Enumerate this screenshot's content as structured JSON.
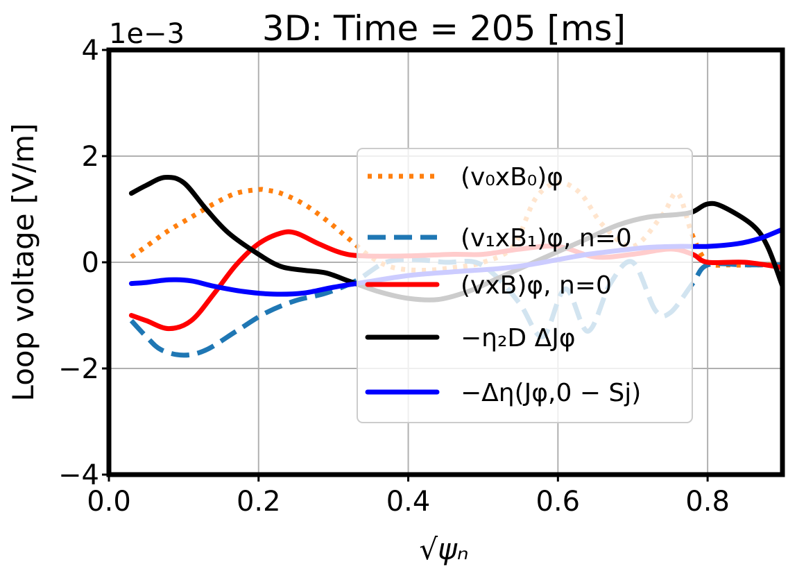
{
  "chart_data": {
    "type": "line",
    "title": "3D: Time = 205 [ms]",
    "xlabel": "√ψₙ",
    "ylabel": "Loop voltage [V/m]",
    "y_scale_label": "1e−3",
    "xlim": [
      0.0,
      0.9
    ],
    "ylim": [
      -4,
      4
    ],
    "xticks": [
      0.0,
      0.2,
      0.4,
      0.6,
      0.8
    ],
    "xtick_labels": [
      "0.0",
      "0.2",
      "0.4",
      "0.6",
      "0.8"
    ],
    "yticks": [
      -4,
      -2,
      0,
      2,
      4
    ],
    "ytick_labels": [
      "−4",
      "−2",
      "0",
      "2",
      "4"
    ],
    "grid": true,
    "legend_position": "center-right",
    "series": [
      {
        "name": "(v₀xB₀)φ",
        "color": "#ff7f0e",
        "style": "dotted",
        "x": [
          0.03,
          0.05,
          0.08,
          0.11,
          0.14,
          0.17,
          0.2,
          0.21,
          0.23,
          0.26,
          0.29,
          0.32,
          0.35,
          0.38,
          0.42,
          0.46,
          0.5,
          0.54,
          0.57,
          0.6,
          0.63,
          0.66,
          0.7,
          0.74,
          0.76,
          0.78,
          0.8,
          0.83,
          0.87,
          0.9
        ],
        "values": [
          0.1,
          0.3,
          0.6,
          0.85,
          1.1,
          1.3,
          1.37,
          1.36,
          1.3,
          1.1,
          0.8,
          0.45,
          0.1,
          -0.1,
          -0.15,
          -0.1,
          0.0,
          0.3,
          1.2,
          1.5,
          1.3,
          0.7,
          0.3,
          0.9,
          1.3,
          0.5,
          0.0,
          -0.05,
          -0.05,
          -0.05
        ]
      },
      {
        "name": "(v₁xB₁)φ, n=0",
        "color": "#1f77b4",
        "style": "dashed",
        "x": [
          0.03,
          0.05,
          0.07,
          0.1,
          0.13,
          0.17,
          0.21,
          0.25,
          0.29,
          0.33,
          0.37,
          0.41,
          0.45,
          0.49,
          0.52,
          0.55,
          0.58,
          0.61,
          0.64,
          0.67,
          0.7,
          0.73,
          0.75,
          0.78,
          0.8,
          0.85,
          0.9
        ],
        "values": [
          -1.1,
          -1.4,
          -1.65,
          -1.75,
          -1.65,
          -1.3,
          -0.95,
          -0.72,
          -0.58,
          -0.35,
          0.0,
          0.05,
          0.0,
          0.0,
          -0.3,
          -0.8,
          -1.4,
          -0.5,
          -1.3,
          -0.4,
          0.0,
          -0.9,
          -0.95,
          -0.4,
          -0.05,
          -0.05,
          -0.05
        ]
      },
      {
        "name": "(vxB)φ, n=0",
        "color": "#ff0000",
        "style": "solid",
        "x": [
          0.03,
          0.05,
          0.08,
          0.11,
          0.14,
          0.17,
          0.2,
          0.23,
          0.25,
          0.28,
          0.31,
          0.34,
          0.4,
          0.46,
          0.5,
          0.55,
          0.6,
          0.65,
          0.7,
          0.75,
          0.78,
          0.8,
          0.85,
          0.9
        ],
        "values": [
          -1.0,
          -1.1,
          -1.25,
          -1.1,
          -0.6,
          -0.05,
          0.35,
          0.55,
          0.55,
          0.35,
          0.18,
          0.12,
          0.12,
          0.15,
          0.15,
          0.25,
          0.3,
          0.1,
          0.15,
          0.25,
          0.15,
          0.0,
          0.0,
          -0.1
        ]
      },
      {
        "name": "−η₂D ΔJφ",
        "color": "#000000",
        "style": "solid",
        "x": [
          0.03,
          0.05,
          0.075,
          0.1,
          0.13,
          0.16,
          0.2,
          0.23,
          0.26,
          0.29,
          0.32,
          0.36,
          0.4,
          0.44,
          0.48,
          0.52,
          0.56,
          0.6,
          0.64,
          0.68,
          0.72,
          0.76,
          0.78,
          0.8,
          0.82,
          0.86,
          0.88,
          0.9
        ],
        "values": [
          1.3,
          1.45,
          1.6,
          1.5,
          1.0,
          0.55,
          0.15,
          -0.08,
          -0.15,
          -0.2,
          -0.35,
          -0.55,
          -0.68,
          -0.7,
          -0.55,
          -0.3,
          -0.05,
          0.2,
          0.45,
          0.7,
          0.85,
          0.9,
          0.95,
          1.1,
          1.05,
          0.7,
          0.3,
          -0.45
        ]
      },
      {
        "name": "−Δη(Jφ,0 − Sj)",
        "color": "#0000ff",
        "style": "solid",
        "x": [
          0.03,
          0.05,
          0.08,
          0.11,
          0.14,
          0.18,
          0.22,
          0.26,
          0.3,
          0.34,
          0.4,
          0.46,
          0.52,
          0.56,
          0.6,
          0.64,
          0.68,
          0.72,
          0.76,
          0.8,
          0.84,
          0.87,
          0.9
        ],
        "values": [
          -0.4,
          -0.38,
          -0.33,
          -0.35,
          -0.45,
          -0.55,
          -0.6,
          -0.58,
          -0.47,
          -0.38,
          -0.25,
          -0.18,
          -0.12,
          -0.05,
          0.05,
          0.15,
          0.22,
          0.28,
          0.3,
          0.3,
          0.35,
          0.45,
          0.62
        ]
      }
    ]
  }
}
